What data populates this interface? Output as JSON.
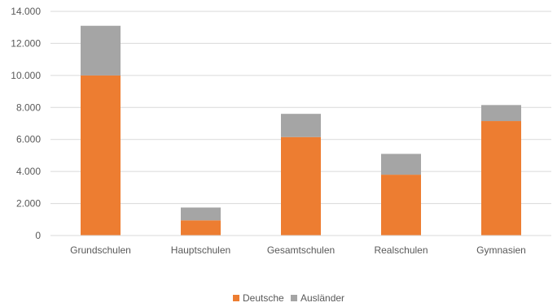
{
  "chart_data": {
    "type": "bar",
    "stacked": true,
    "title": "",
    "xlabel": "",
    "ylabel": "",
    "ylim": [
      0,
      14000
    ],
    "yticks": [
      0,
      2000,
      4000,
      6000,
      8000,
      10000,
      12000,
      14000
    ],
    "ytick_labels": [
      "0",
      "2.000",
      "4.000",
      "6.000",
      "8.000",
      "10.000",
      "12.000",
      "14.000"
    ],
    "grid": true,
    "legend_position": "bottom",
    "categories": [
      "Grundschulen",
      "Hauptschulen",
      "Gesamtschulen",
      "Realschulen",
      "Gymnasien"
    ],
    "series": [
      {
        "name": "Deutsche",
        "color": "#ed7d31",
        "values": [
          10000,
          950,
          6150,
          3800,
          7150
        ]
      },
      {
        "name": "Ausländer",
        "color": "#a5a5a5",
        "values": [
          3100,
          800,
          1450,
          1300,
          1000
        ]
      }
    ]
  }
}
